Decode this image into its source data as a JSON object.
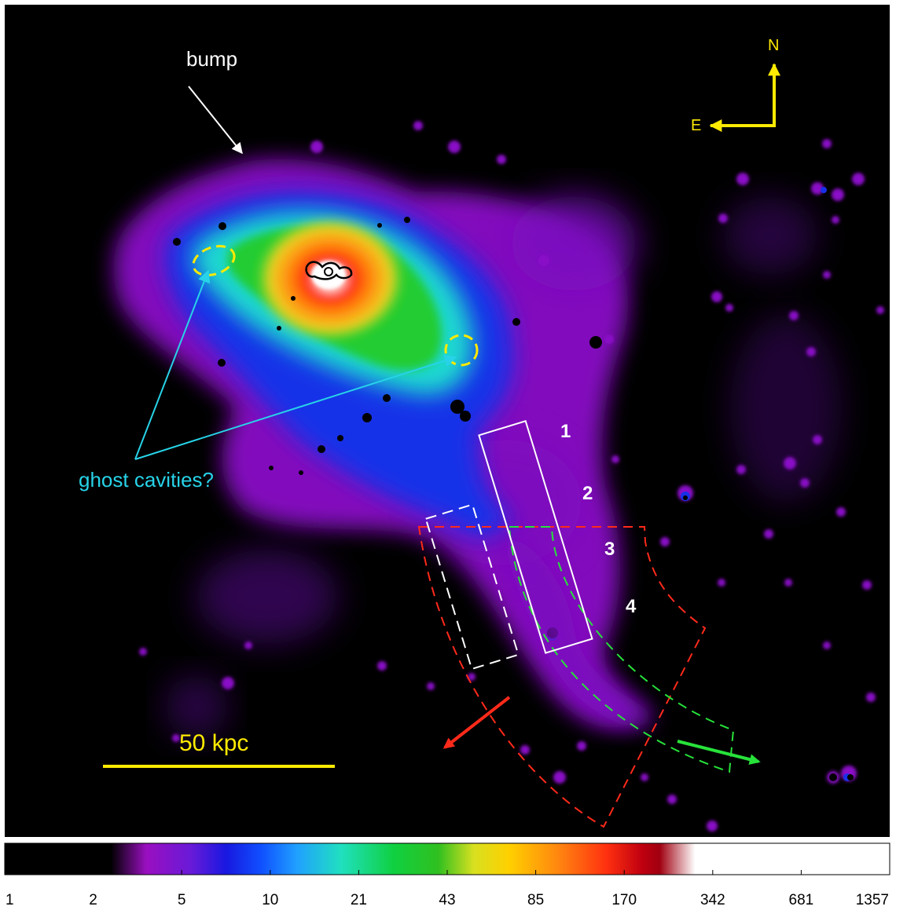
{
  "annotations": {
    "bump": "bump",
    "ghost_cavities": "ghost cavities?",
    "scale_bar": "50 kpc",
    "compass_north": "N",
    "compass_east": "E",
    "region_labels": [
      "1",
      "2",
      "3",
      "4"
    ]
  },
  "colorbar": {
    "ticks": [
      "1",
      "2",
      "5",
      "10",
      "21",
      "43",
      "85",
      "170",
      "342",
      "681",
      "1357"
    ],
    "scale": "log"
  },
  "colors": {
    "background": "#000000",
    "annotation_white": "#ffffff",
    "cavity_yellow": "#ffea00",
    "cavity_arrow": "#27d3e8",
    "red_sector": "#ff2a1a",
    "green_sector": "#27e23a"
  }
}
